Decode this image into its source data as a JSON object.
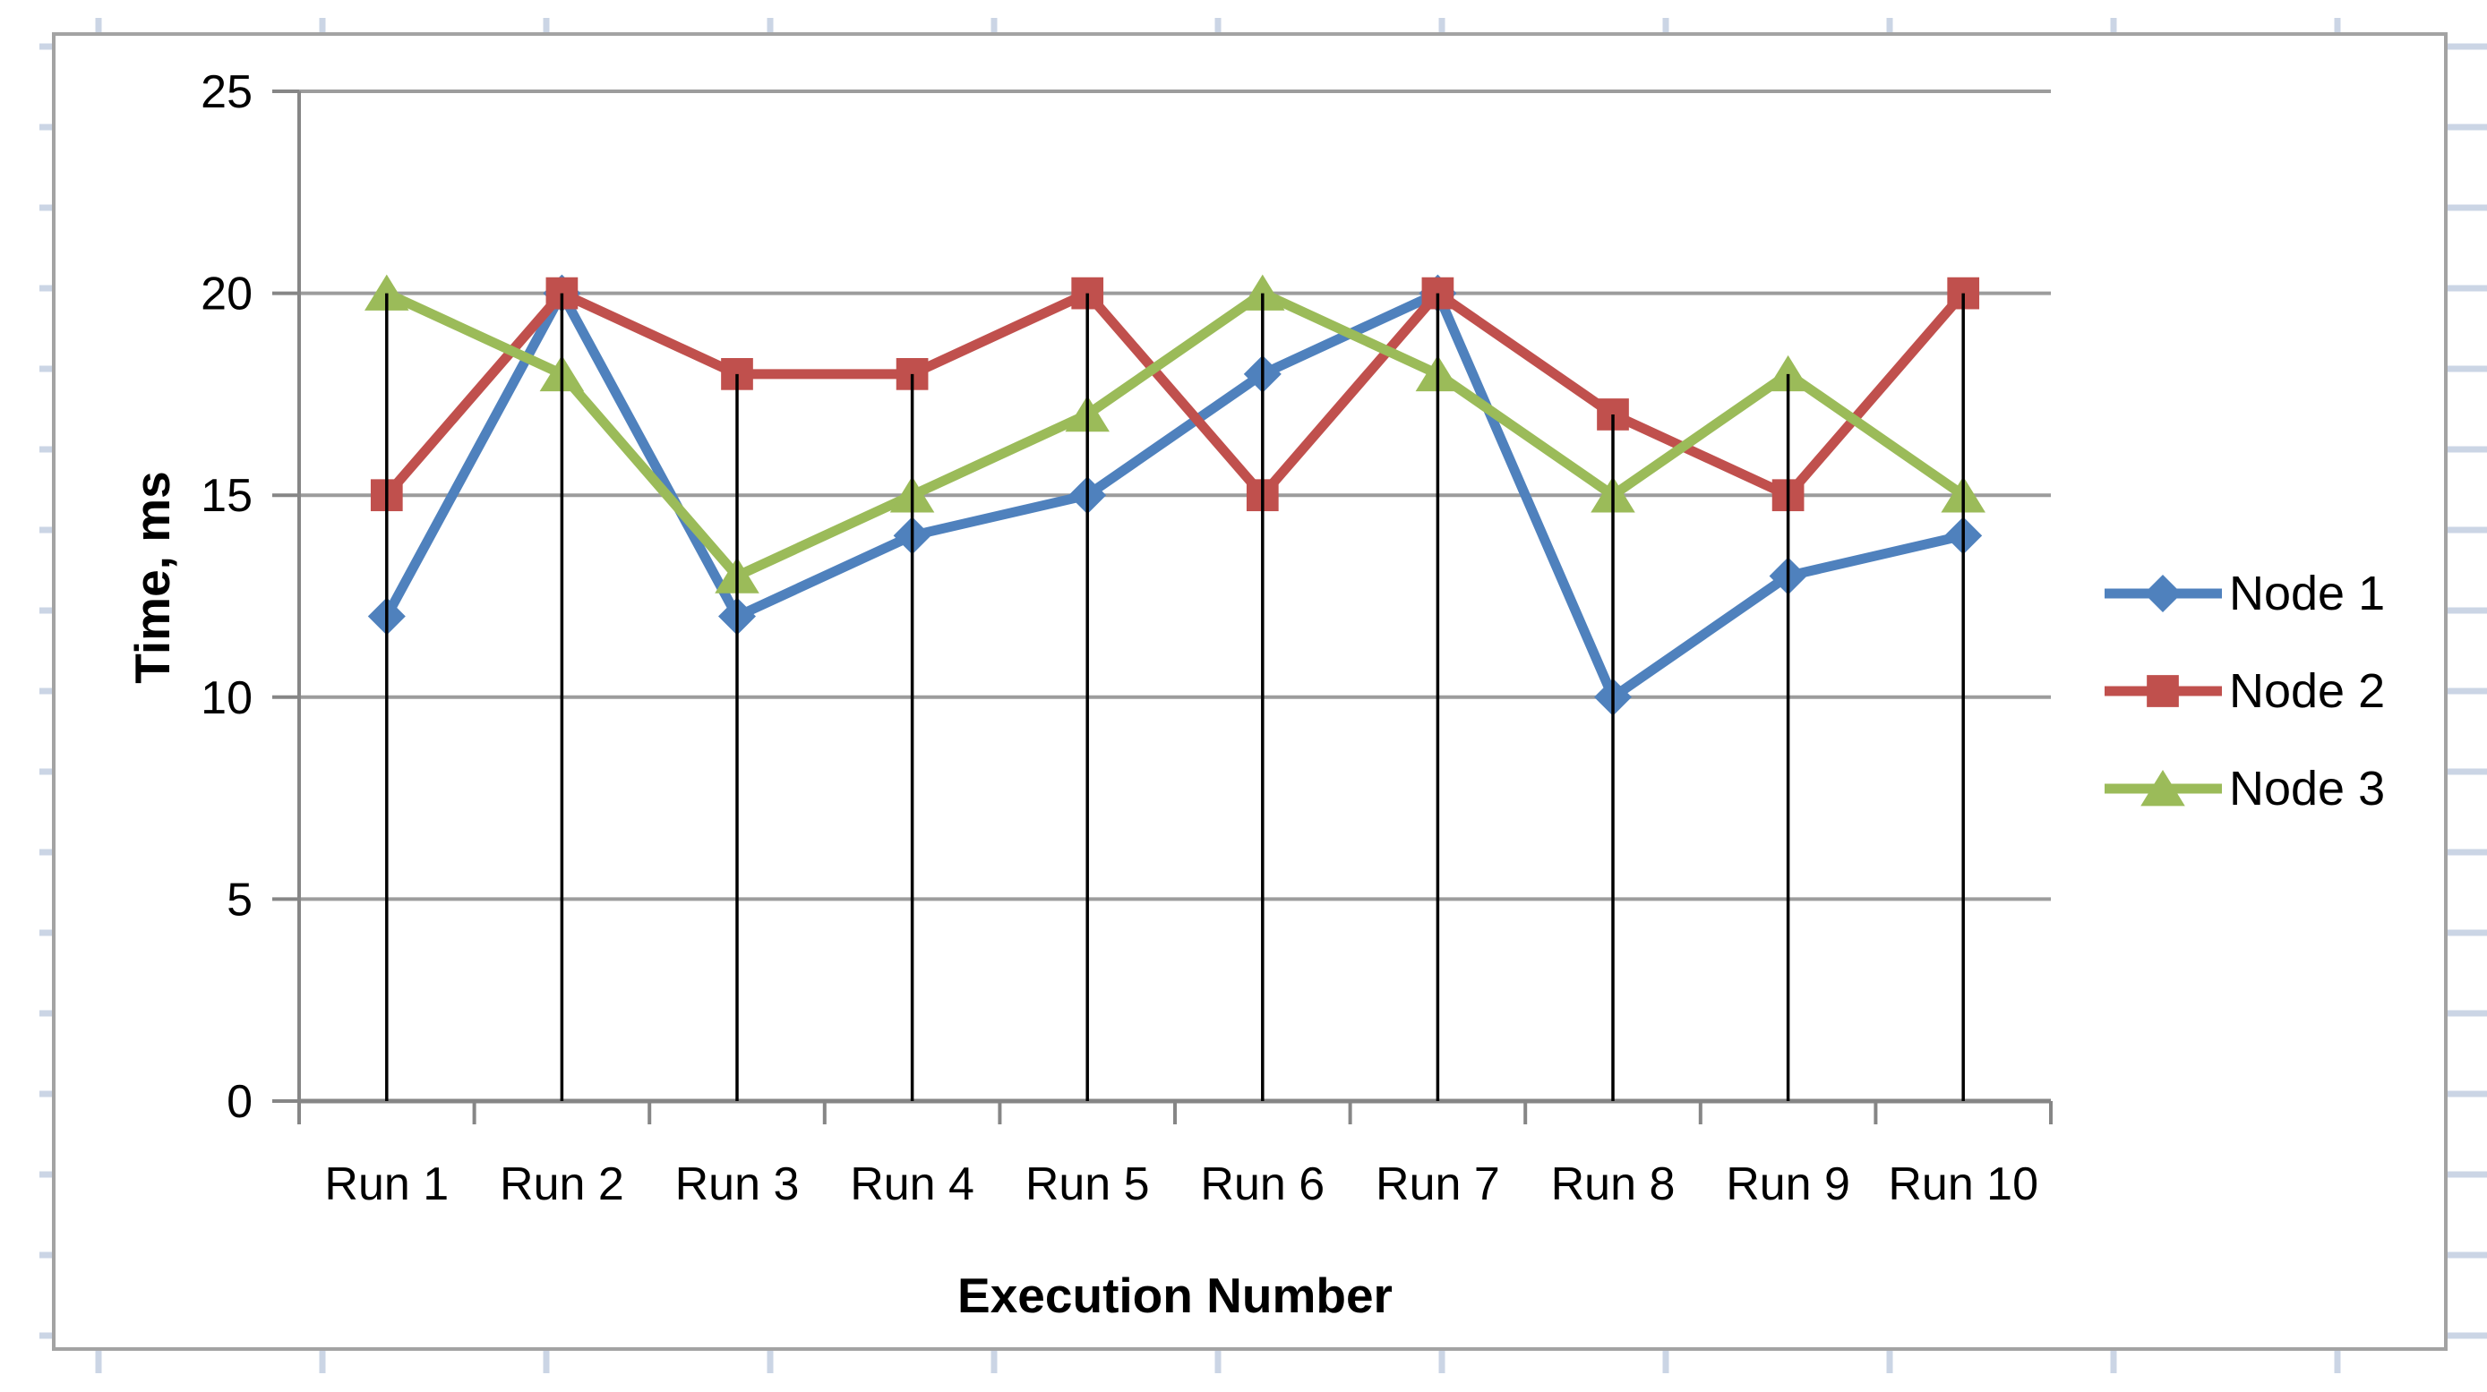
{
  "chart_data": {
    "type": "line",
    "title": "",
    "categories": [
      "Run 1",
      "Run 2",
      "Run 3",
      "Run 4",
      "Run 5",
      "Run 6",
      "Run 7",
      "Run 8",
      "Run 9",
      "Run 10"
    ],
    "series": [
      {
        "name": "Node 1",
        "marker": "diamond",
        "color": "#4F81BD",
        "values": [
          12,
          20,
          12,
          14,
          15,
          18,
          20,
          10,
          13,
          14
        ]
      },
      {
        "name": "Node 2",
        "marker": "square",
        "color": "#C0504D",
        "values": [
          15,
          20,
          18,
          18,
          20,
          15,
          20,
          17,
          15,
          20
        ]
      },
      {
        "name": "Node 3",
        "marker": "triangle",
        "color": "#9BBB59",
        "values": [
          20,
          18,
          13,
          15,
          17,
          20,
          18,
          15,
          18,
          15
        ]
      }
    ],
    "xlabel": "Execution Number",
    "ylabel": "Time, ms",
    "ylim": [
      0,
      25
    ],
    "yticks": [
      0,
      5,
      10,
      15,
      20,
      25
    ],
    "grid": "horizontal-major",
    "drop_lines": true,
    "legend_position": "right-outside"
  },
  "colors": {
    "plot_background": "#FFFFFF",
    "gridline": "#9C9C9C",
    "axis_line": "#868686",
    "drop_line": "#000000",
    "chart_border": "#A3A3A3",
    "sheet_gridline": "#CBD5E5",
    "tick_text": "#000000"
  }
}
